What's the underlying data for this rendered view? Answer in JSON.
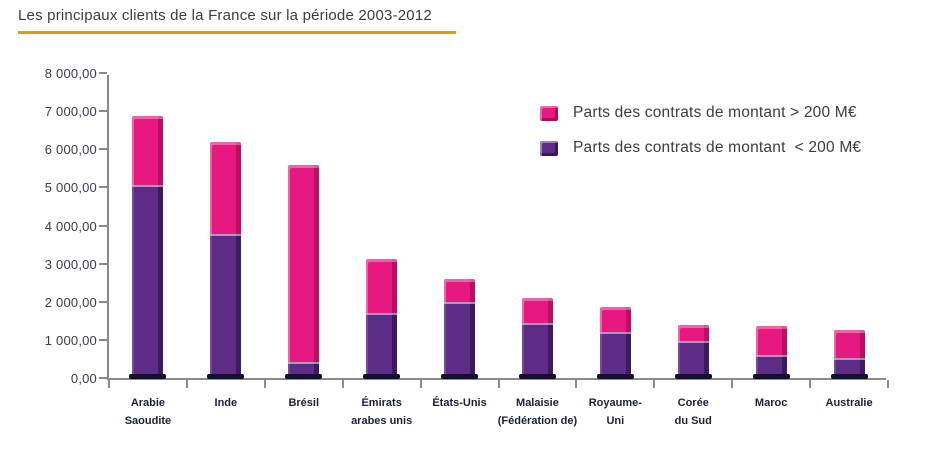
{
  "title": "Les principaux clients de la France sur la période 2003-2012",
  "colors": {
    "pink": "#e7187f",
    "purple": "#5d2c87",
    "title_underline": "#d7a00e",
    "axis": "#8a8a8a",
    "bar_base": "#160f2b"
  },
  "legend": [
    {
      "label": "Parts des contrats de montant > 200 M€",
      "color_key": "pink"
    },
    {
      "label": "Parts des contrats de montant  < 200 M€",
      "color_key": "purple"
    }
  ],
  "chart_data": {
    "type": "bar",
    "stacked": true,
    "title": "Les principaux clients de la France sur la période 2003-2012",
    "categories": [
      "Arabie\nSaoudite",
      "Inde",
      "Brésil",
      "Émirats\narabes unis",
      "États-Unis",
      "Malaisie\n(Fédération de)",
      "Royaume-\nUni",
      "Corée\ndu Sud",
      "Maroc",
      "Australie"
    ],
    "series": [
      {
        "name": "Parts des contrats de montant > 200 M€",
        "color_key": "pink",
        "stack_position": "top",
        "values": [
          1790,
          2420,
          5170,
          1400,
          610,
          650,
          650,
          420,
          770,
          730
        ]
      },
      {
        "name": "Parts des contrats de montant < 200 M€",
        "color_key": "purple",
        "stack_position": "bottom",
        "values": [
          5070,
          3780,
          430,
          1710,
          2000,
          1450,
          1200,
          960,
          600,
          530
        ]
      }
    ],
    "totals": [
      6860,
      6200,
      5600,
      3110,
      2610,
      2100,
      1850,
      1380,
      1370,
      1260
    ],
    "ylim": [
      0,
      8000
    ],
    "ytick_step": 1000,
    "ytick_labels": [
      "0,00",
      "1 000,00",
      "2 000,00",
      "3 000,00",
      "4 000,00",
      "5 000,00",
      "6 000,00",
      "7 000,00",
      "8 000,00"
    ],
    "xlabel": "",
    "ylabel": "",
    "grid": false,
    "legend_position": "inside-top-right"
  }
}
